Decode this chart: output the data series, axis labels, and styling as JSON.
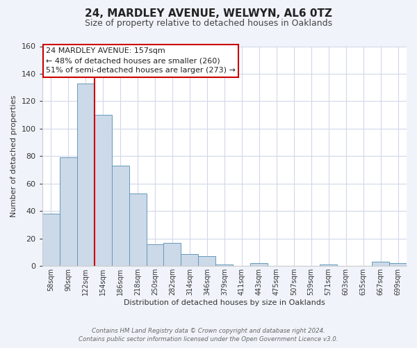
{
  "title": "24, MARDLEY AVENUE, WELWYN, AL6 0TZ",
  "subtitle": "Size of property relative to detached houses in Oaklands",
  "xlabel": "Distribution of detached houses by size in Oaklands",
  "ylabel": "Number of detached properties",
  "bar_labels": [
    "58sqm",
    "90sqm",
    "122sqm",
    "154sqm",
    "186sqm",
    "218sqm",
    "250sqm",
    "282sqm",
    "314sqm",
    "346sqm",
    "379sqm",
    "411sqm",
    "443sqm",
    "475sqm",
    "507sqm",
    "539sqm",
    "571sqm",
    "603sqm",
    "635sqm",
    "667sqm",
    "699sqm"
  ],
  "bar_heights": [
    38,
    79,
    133,
    110,
    73,
    53,
    16,
    17,
    9,
    7,
    1,
    0,
    2,
    0,
    0,
    0,
    1,
    0,
    0,
    3,
    2
  ],
  "bar_color": "#ccd9e8",
  "bar_edge_color": "#6699bb",
  "vline_x_index": 2,
  "vline_color": "#cc0000",
  "ylim": [
    0,
    160
  ],
  "yticks": [
    0,
    20,
    40,
    60,
    80,
    100,
    120,
    140,
    160
  ],
  "annotation_lines": [
    "24 MARDLEY AVENUE: 157sqm",
    "← 48% of detached houses are smaller (260)",
    "51% of semi-detached houses are larger (273) →"
  ],
  "footer_line1": "Contains HM Land Registry data © Crown copyright and database right 2024.",
  "footer_line2": "Contains public sector information licensed under the Open Government Licence v3.0.",
  "bg_color": "#f0f4fa",
  "plot_bg_color": "#ffffff",
  "grid_color": "#d0d8e8"
}
